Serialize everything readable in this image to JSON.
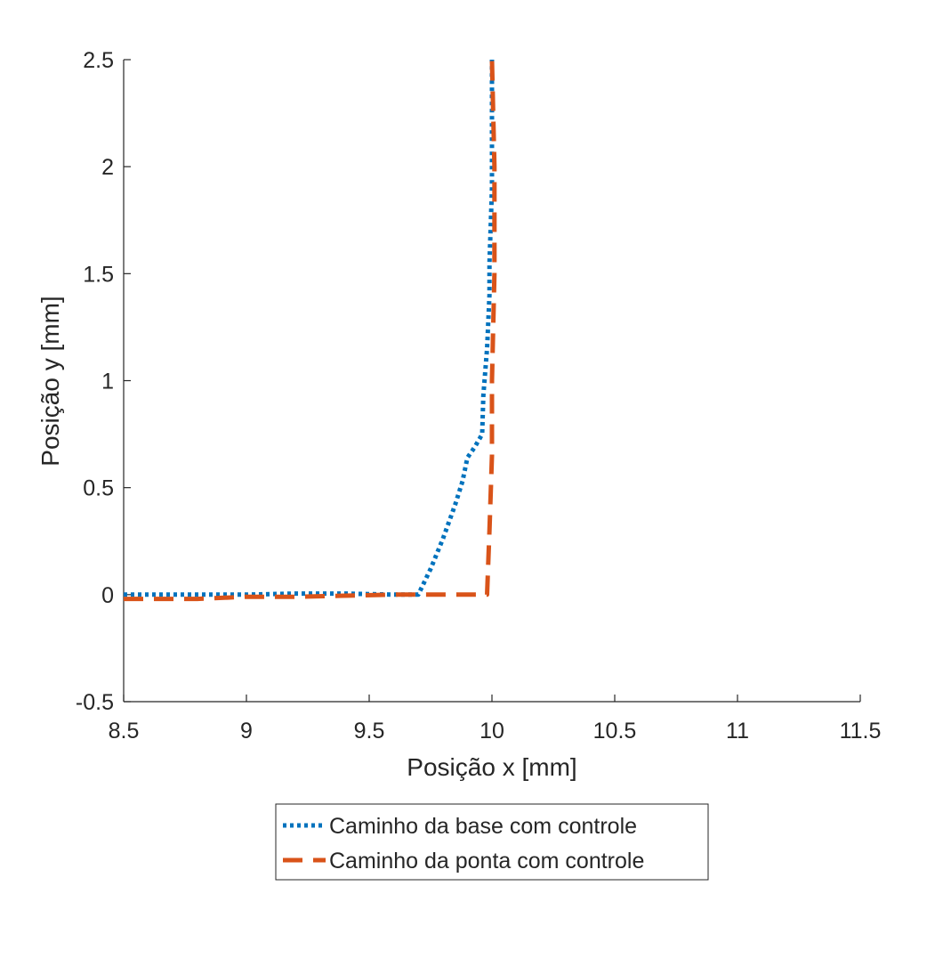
{
  "chart_data": {
    "type": "line",
    "title": "",
    "xlabel": "Posição x [mm]",
    "ylabel": "Posição y [mm]",
    "xlim": [
      8.5,
      11.5
    ],
    "ylim": [
      -0.5,
      2.5
    ],
    "xticks": [
      8.5,
      9,
      9.5,
      10,
      10.5,
      11,
      11.5
    ],
    "xtick_labels": [
      "8.5",
      "9",
      "9.5",
      "10",
      "10.5",
      "11",
      "11.5"
    ],
    "yticks": [
      -0.5,
      0,
      0.5,
      1,
      1.5,
      2,
      2.5
    ],
    "ytick_labels": [
      "-0.5",
      "0",
      "0.5",
      "1",
      "1.5",
      "2",
      "2.5"
    ],
    "grid": false,
    "legend_position": "bottom-outside",
    "series": [
      {
        "name": "Caminho da base com controle",
        "color": "#0072BD",
        "style": "dotted",
        "x": [
          8.5,
          8.8,
          9.0,
          9.2,
          9.4,
          9.6,
          9.7,
          9.75,
          9.8,
          9.85,
          9.88,
          9.9,
          9.93,
          9.96,
          9.965,
          9.98,
          9.99,
          9.99,
          10.0,
          10.0
        ],
        "y": [
          0.0,
          0.0,
          0.0,
          0.005,
          0.005,
          0.0,
          0.0,
          0.12,
          0.26,
          0.42,
          0.53,
          0.64,
          0.69,
          0.75,
          0.93,
          1.15,
          1.4,
          1.55,
          1.9,
          2.5
        ]
      },
      {
        "name": "Caminho da ponta com controle",
        "color": "#D95319",
        "style": "dashed",
        "x": [
          8.5,
          8.8,
          9.0,
          9.2,
          9.4,
          9.6,
          9.8,
          9.98,
          9.99,
          10.0,
          10.0,
          10.01,
          10.01,
          10.0
        ],
        "y": [
          -0.02,
          -0.02,
          -0.01,
          -0.01,
          -0.005,
          0.0,
          0.0,
          0.0,
          0.3,
          0.65,
          1.0,
          1.5,
          2.0,
          2.5
        ]
      }
    ]
  }
}
